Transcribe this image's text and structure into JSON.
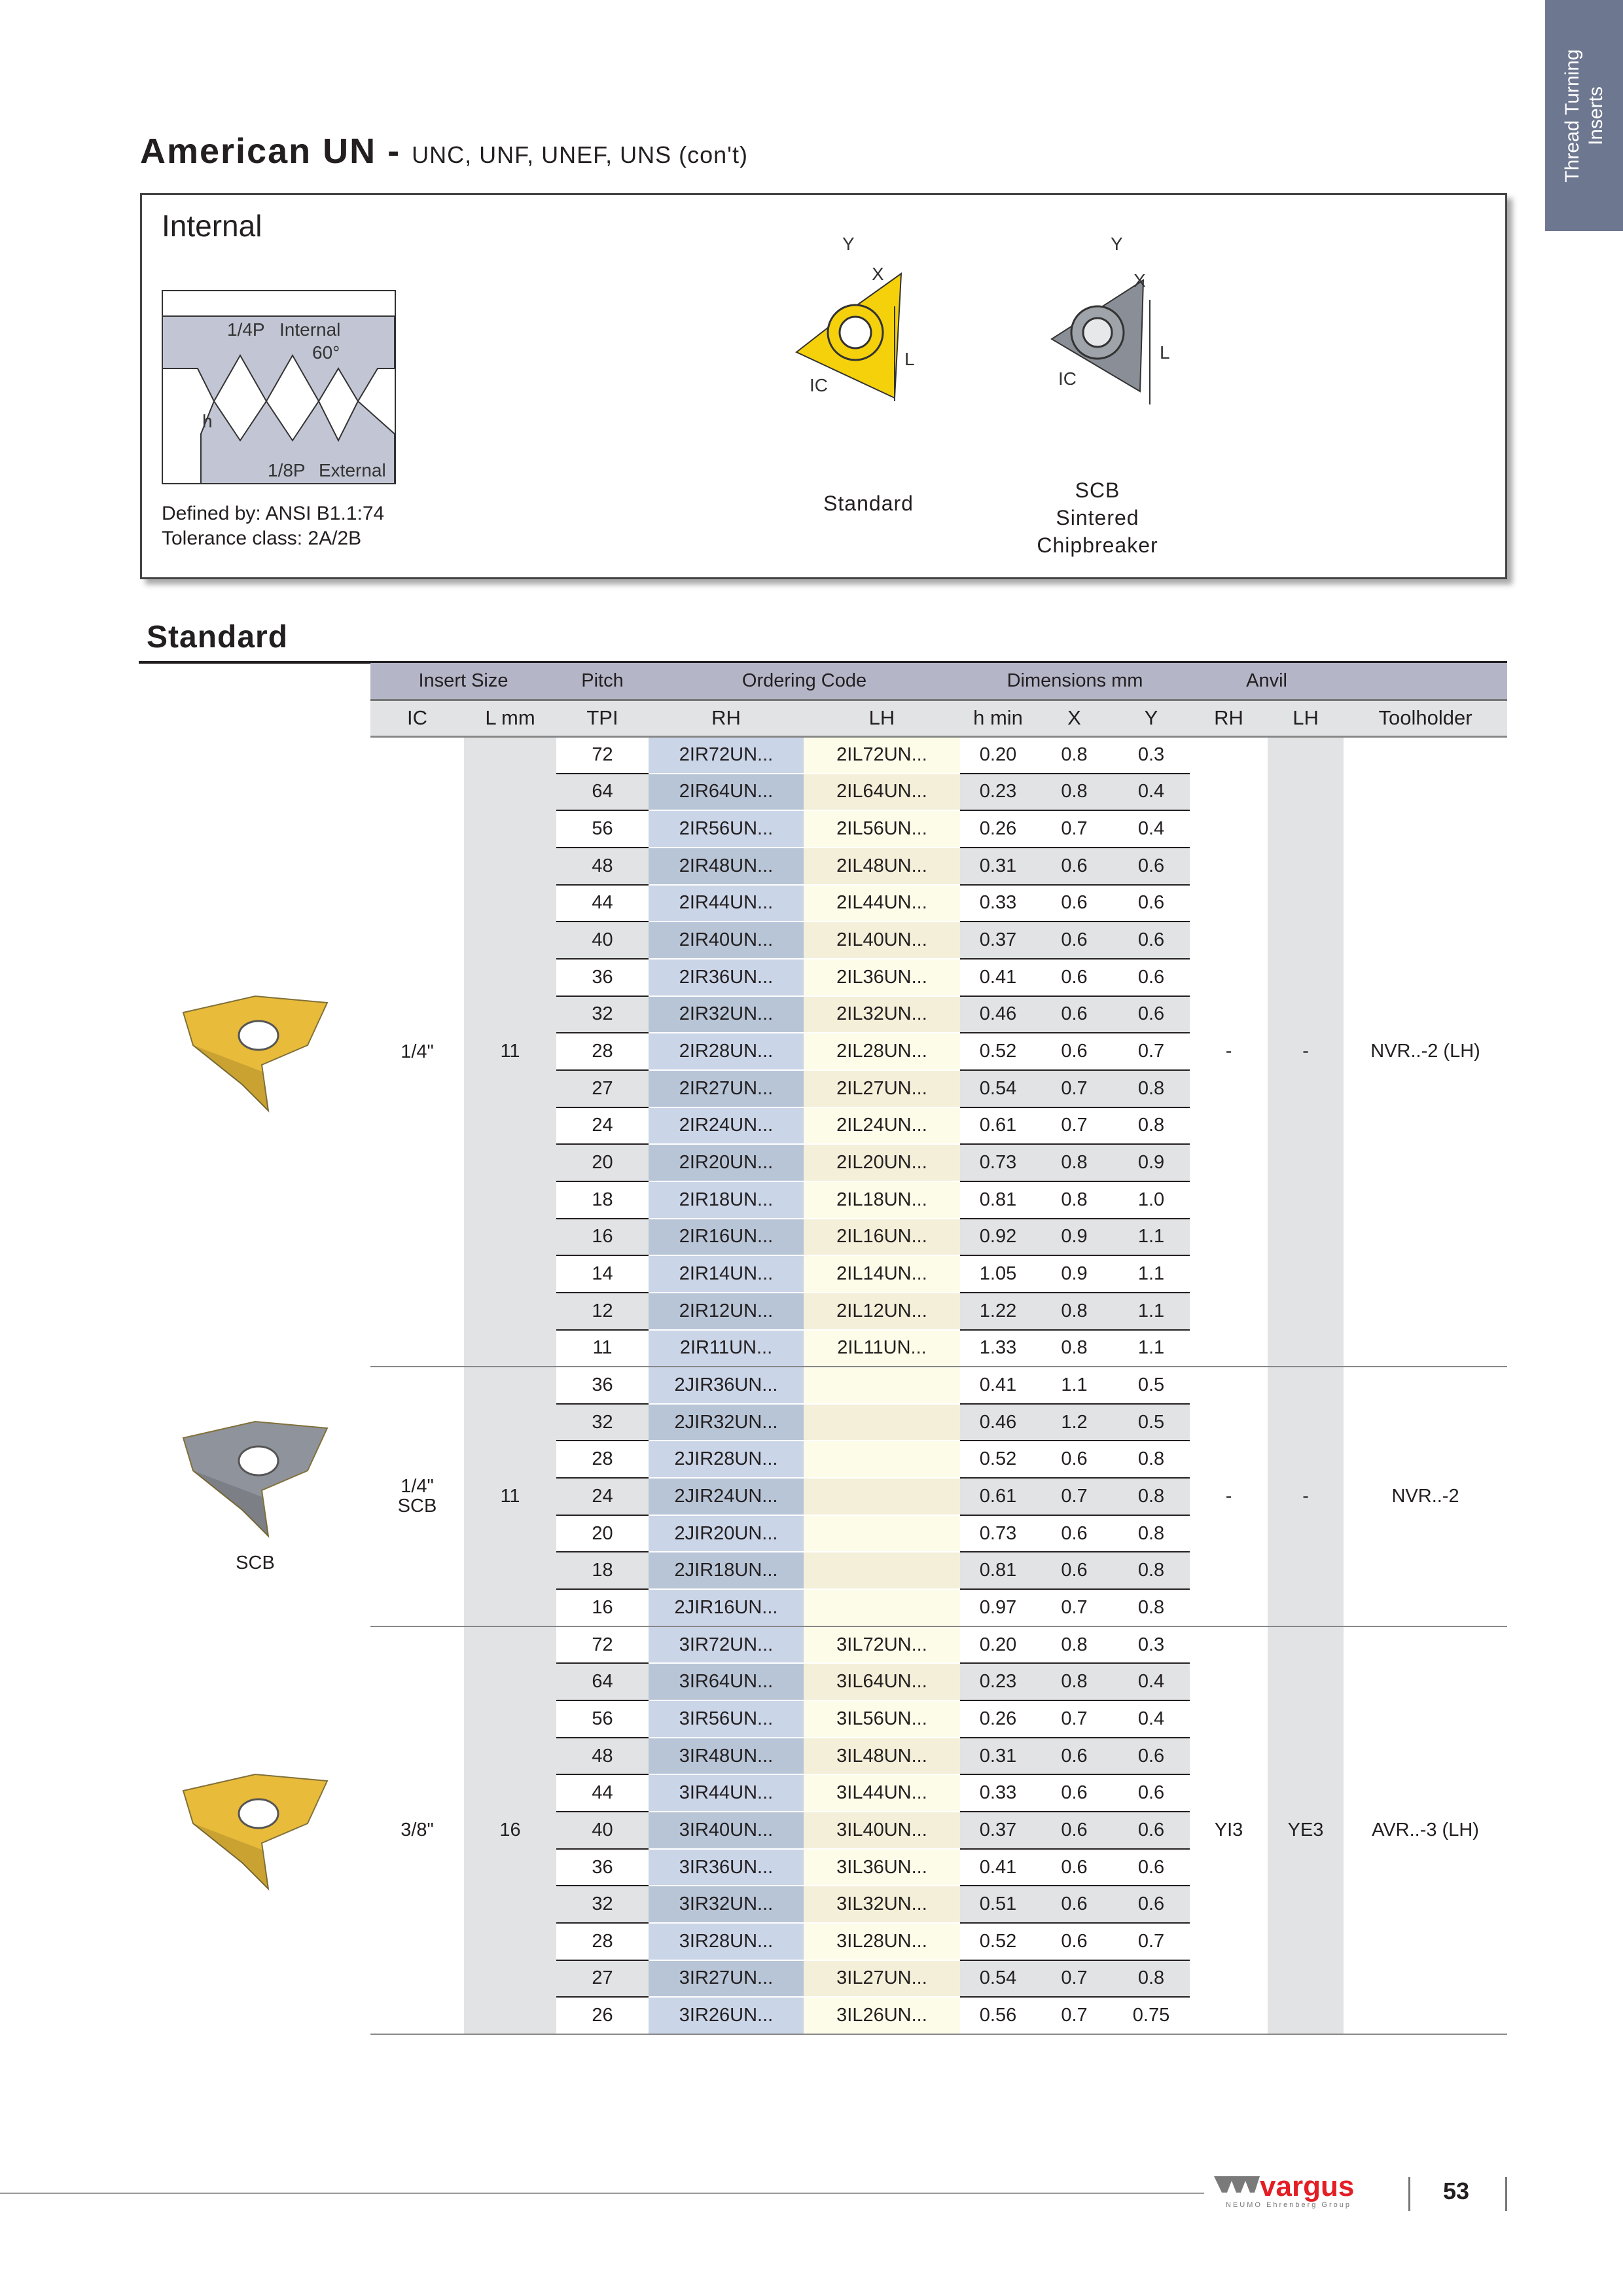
{
  "side_tab": {
    "line1": "Thread Turning",
    "line2": "Inserts"
  },
  "title": {
    "main": "American UN - ",
    "sub": "UNC, UNF, UNEF, UNS (con't)"
  },
  "info_box": {
    "label": "Internal",
    "defined_by": "Defined by: ANSI B1.1:74",
    "tolerance": "Tolerance class: 2A/2B",
    "diagram": {
      "quarter_p": "1/4P",
      "internal": "Internal",
      "angle": "60°",
      "h": "h",
      "eighth_p": "1/8P",
      "external": "External"
    },
    "standard_caption": "Standard",
    "scb_caption": [
      "SCB",
      "Sintered",
      "Chipbreaker"
    ],
    "dim_labels": {
      "y": "Y",
      "x": "X",
      "l": "L",
      "ic": "IC"
    }
  },
  "section_title": "Standard",
  "table": {
    "group_headers": [
      "Insert Size",
      "Pitch",
      "Ordering Code",
      "Dimensions mm",
      "Anvil"
    ],
    "sub_headers": [
      "IC",
      "L mm",
      "TPI",
      "RH",
      "LH",
      "h min",
      "X",
      "Y",
      "RH",
      "LH",
      "Toolholder"
    ],
    "groups": [
      {
        "image_label": "",
        "ic": "1/4\"",
        "l": "11",
        "anvil_rh": "-",
        "anvil_lh": "-",
        "toolholder": "NVR..-2 (LH)",
        "insert_color": "#e8b830",
        "rows": [
          [
            "72",
            "2IR72UN...",
            "2IL72UN...",
            "0.20",
            "0.8",
            "0.3"
          ],
          [
            "64",
            "2IR64UN...",
            "2IL64UN...",
            "0.23",
            "0.8",
            "0.4"
          ],
          [
            "56",
            "2IR56UN...",
            "2IL56UN...",
            "0.26",
            "0.7",
            "0.4"
          ],
          [
            "48",
            "2IR48UN...",
            "2IL48UN...",
            "0.31",
            "0.6",
            "0.6"
          ],
          [
            "44",
            "2IR44UN...",
            "2IL44UN...",
            "0.33",
            "0.6",
            "0.6"
          ],
          [
            "40",
            "2IR40UN...",
            "2IL40UN...",
            "0.37",
            "0.6",
            "0.6"
          ],
          [
            "36",
            "2IR36UN...",
            "2IL36UN...",
            "0.41",
            "0.6",
            "0.6"
          ],
          [
            "32",
            "2IR32UN...",
            "2IL32UN...",
            "0.46",
            "0.6",
            "0.6"
          ],
          [
            "28",
            "2IR28UN...",
            "2IL28UN...",
            "0.52",
            "0.6",
            "0.7"
          ],
          [
            "27",
            "2IR27UN...",
            "2IL27UN...",
            "0.54",
            "0.7",
            "0.8"
          ],
          [
            "24",
            "2IR24UN...",
            "2IL24UN...",
            "0.61",
            "0.7",
            "0.8"
          ],
          [
            "20",
            "2IR20UN...",
            "2IL20UN...",
            "0.73",
            "0.8",
            "0.9"
          ],
          [
            "18",
            "2IR18UN...",
            "2IL18UN...",
            "0.81",
            "0.8",
            "1.0"
          ],
          [
            "16",
            "2IR16UN...",
            "2IL16UN...",
            "0.92",
            "0.9",
            "1.1"
          ],
          [
            "14",
            "2IR14UN...",
            "2IL14UN...",
            "1.05",
            "0.9",
            "1.1"
          ],
          [
            "12",
            "2IR12UN...",
            "2IL12UN...",
            "1.22",
            "0.8",
            "1.1"
          ],
          [
            "11",
            "2IR11UN...",
            "2IL11UN...",
            "1.33",
            "0.8",
            "1.1"
          ]
        ]
      },
      {
        "image_label": "SCB",
        "ic": "1/4\"\nSCB",
        "l": "11",
        "anvil_rh": "-",
        "anvil_lh": "-",
        "toolholder": "NVR..-2",
        "insert_color": "#8a8e96",
        "rows": [
          [
            "36",
            "2JIR36UN...",
            "",
            "0.41",
            "1.1",
            "0.5"
          ],
          [
            "32",
            "2JIR32UN...",
            "",
            "0.46",
            "1.2",
            "0.5"
          ],
          [
            "28",
            "2JIR28UN...",
            "",
            "0.52",
            "0.6",
            "0.8"
          ],
          [
            "24",
            "2JIR24UN...",
            "",
            "0.61",
            "0.7",
            "0.8"
          ],
          [
            "20",
            "2JIR20UN...",
            "",
            "0.73",
            "0.6",
            "0.8"
          ],
          [
            "18",
            "2JIR18UN...",
            "",
            "0.81",
            "0.6",
            "0.8"
          ],
          [
            "16",
            "2JIR16UN...",
            "",
            "0.97",
            "0.7",
            "0.8"
          ]
        ]
      },
      {
        "image_label": "",
        "ic": "3/8\"",
        "l": "16",
        "anvil_rh": "YI3",
        "anvil_lh": "YE3",
        "toolholder": "AVR..-3 (LH)",
        "insert_color": "#e8b830",
        "rows": [
          [
            "72",
            "3IR72UN...",
            "3IL72UN...",
            "0.20",
            "0.8",
            "0.3"
          ],
          [
            "64",
            "3IR64UN...",
            "3IL64UN...",
            "0.23",
            "0.8",
            "0.4"
          ],
          [
            "56",
            "3IR56UN...",
            "3IL56UN...",
            "0.26",
            "0.7",
            "0.4"
          ],
          [
            "48",
            "3IR48UN...",
            "3IL48UN...",
            "0.31",
            "0.6",
            "0.6"
          ],
          [
            "44",
            "3IR44UN...",
            "3IL44UN...",
            "0.33",
            "0.6",
            "0.6"
          ],
          [
            "40",
            "3IR40UN...",
            "3IL40UN...",
            "0.37",
            "0.6",
            "0.6"
          ],
          [
            "36",
            "3IR36UN...",
            "3IL36UN...",
            "0.41",
            "0.6",
            "0.6"
          ],
          [
            "32",
            "3IR32UN...",
            "3IL32UN...",
            "0.51",
            "0.6",
            "0.6"
          ],
          [
            "28",
            "3IR28UN...",
            "3IL28UN...",
            "0.52",
            "0.6",
            "0.7"
          ],
          [
            "27",
            "3IR27UN...",
            "3IL27UN...",
            "0.54",
            "0.7",
            "0.8"
          ],
          [
            "26",
            "3IR26UN...",
            "3IL26UN...",
            "0.56",
            "0.7",
            "0.75"
          ]
        ]
      }
    ]
  },
  "footer": {
    "logo": "vargus",
    "logo_sub": "NEUMO Ehrenberg Group",
    "page_number": "53"
  },
  "colors": {
    "side_tab": "#6e7790",
    "group_header": "#b4b6c8",
    "rh_column": "#cbd5e8",
    "lh_column": "#fdfce9",
    "logo_red": "#e31e24",
    "insert_gold": "#e8b830"
  }
}
